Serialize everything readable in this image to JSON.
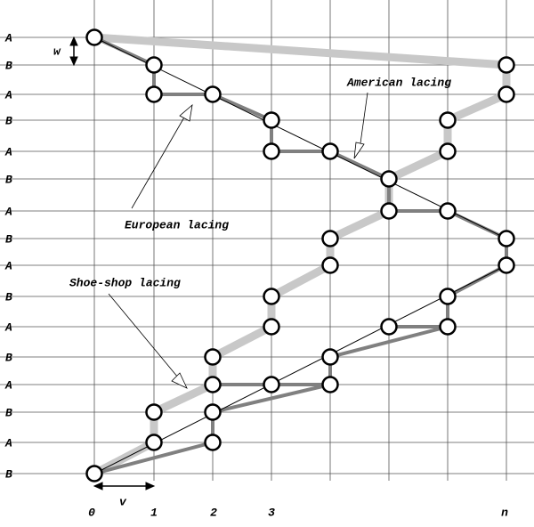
{
  "row_labels": [
    "A",
    "B",
    "A",
    "B",
    "A",
    "B",
    "A",
    "B",
    "A",
    "B",
    "A",
    "B",
    "A",
    "B",
    "A",
    "B"
  ],
  "column_labels": [
    "0",
    "1",
    "2",
    "3",
    "n"
  ],
  "dimensions": {
    "w": "w",
    "v": "v"
  },
  "annotations": {
    "american": "American  lacing",
    "european": "European  lacing",
    "shoe_shop": "Shoe-shop  lacing"
  }
}
